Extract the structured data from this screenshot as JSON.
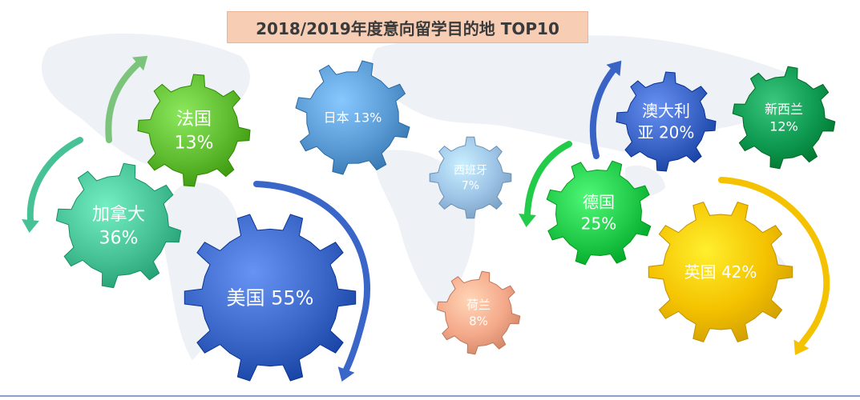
{
  "title": "2018/2019年度意向留学目的地 TOP10",
  "colors": {
    "usa": "#3a66c8",
    "canada": "#46c296",
    "france": "#5fbb2f",
    "japan": "#5b9bd5",
    "spain": "#9cc3e6",
    "netherlands": "#f4a98a",
    "germany": "#22cc4a",
    "australia": "#3a63c6",
    "newzealand": "#0f9a52",
    "uk": "#f4c200"
  },
  "gears": [
    {
      "key": "usa",
      "lines": [
        "美国 55%"
      ]
    },
    {
      "key": "canada",
      "lines": [
        "加拿大",
        "36%"
      ]
    },
    {
      "key": "france",
      "lines": [
        "法国",
        "13%"
      ]
    },
    {
      "key": "japan",
      "lines": [
        "日本 13%"
      ]
    },
    {
      "key": "spain",
      "lines": [
        "西班牙",
        "7%"
      ]
    },
    {
      "key": "netherlands",
      "lines": [
        "荷兰",
        "8%"
      ]
    },
    {
      "key": "germany",
      "lines": [
        "德国",
        "25%"
      ]
    },
    {
      "key": "australia",
      "lines": [
        "澳大利",
        "亚 20%"
      ]
    },
    {
      "key": "newzealand",
      "lines": [
        "新西兰",
        "12%"
      ]
    },
    {
      "key": "uk",
      "lines": [
        "英国 42%"
      ]
    }
  ]
}
